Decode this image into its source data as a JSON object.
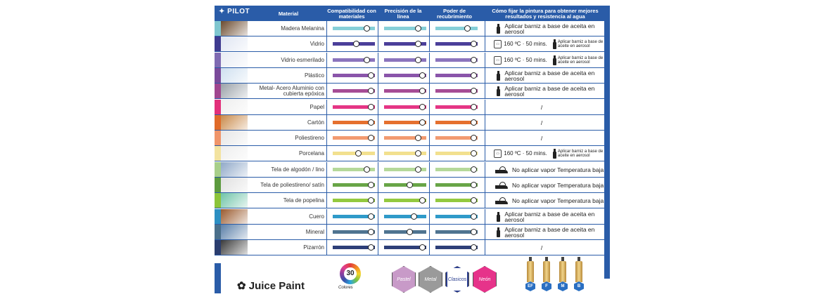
{
  "header": {
    "brand": "PILOT",
    "material": "Material",
    "compat": "Compatibilidad con materiales",
    "precision": "Precisión de la línea",
    "cover": "Poder de recubrimiento",
    "howto": "Cómo fijar la pintura para obtener mejores resultados y resistencia al agua"
  },
  "rows": [
    {
      "label": "Madera Melanina",
      "swatch": "#7fc6cf",
      "photo": "#6b4a2e",
      "bar": "#86cfd8",
      "knobs": [
        {
          "v": 0.8
        },
        {
          "v": 0.8
        },
        {
          "v": 0.75
        }
      ],
      "tip": "spray",
      "tip_text": "Aplicar barniz a base de aceita en aerosol"
    },
    {
      "label": "Vidrio",
      "swatch": "#3e3a8f",
      "photo": "#dfe5f2",
      "bar": "#4b3f9a",
      "knobs": [
        {
          "v": 0.55
        },
        {
          "v": 0.8
        },
        {
          "v": 0.9
        }
      ],
      "tip": "oven",
      "oven_text": "160 ºC · 50 mins.",
      "tip_text": "Aplicar barniz a base de aceite en aerosol"
    },
    {
      "label": "Vidrio esmerilado",
      "swatch": "#7f6ab2",
      "photo": "#e8ecf4",
      "bar": "#8b74bd",
      "knobs": [
        {
          "v": 0.8
        },
        {
          "v": 0.8
        },
        {
          "v": 0.9
        }
      ],
      "tip": "oven",
      "oven_text": "160 ºC · 50 mins.",
      "tip_text": "Aplicar barniz a base de aceite en aerosol"
    },
    {
      "label": "Plástico",
      "swatch": "#7a4a9a",
      "photo": "#cfe0f0",
      "bar": "#8a55aa",
      "knobs": [
        {
          "v": 0.9
        },
        {
          "v": 0.9
        },
        {
          "v": 0.9
        }
      ],
      "tip": "spray",
      "tip_text": "Aplicar barniz a base de aceita en aerosol"
    },
    {
      "label": "Metal- Acero Aluminio con cubierta epóxica",
      "swatch": "#a0468f",
      "photo": "#9aa1a8",
      "bar": "#a64d95",
      "knobs": [
        {
          "v": 0.9
        },
        {
          "v": 0.9
        },
        {
          "v": 0.9
        }
      ],
      "tip": "spray",
      "tip_text": "Aplicar barniz a base de aceita en aerosol"
    },
    {
      "label": "Papel",
      "swatch": "#e2307a",
      "photo": "#eeeeee",
      "bar": "#e53585",
      "knobs": [
        {
          "v": 0.9
        },
        {
          "v": 0.9
        },
        {
          "v": 0.9
        }
      ],
      "tip": "slash",
      "tip_text": "/"
    },
    {
      "label": "Cartón",
      "swatch": "#e06a28",
      "photo": "#c98a4a",
      "bar": "#e5702f",
      "knobs": [
        {
          "v": 0.9
        },
        {
          "v": 0.9
        },
        {
          "v": 0.9
        }
      ],
      "tip": "slash",
      "tip_text": "/"
    },
    {
      "label": "Poliestireno",
      "swatch": "#f0956a",
      "photo": "#e6e6e6",
      "bar": "#f29a70",
      "knobs": [
        {
          "v": 0.9
        },
        {
          "v": 0.8
        },
        {
          "v": 0.9
        }
      ],
      "tip": "slash",
      "tip_text": "/"
    },
    {
      "label": "Porcelana",
      "swatch": "#f3e3a0",
      "photo": "#eeeeee",
      "bar": "#f2e08e",
      "knobs": [
        {
          "v": 0.6
        },
        {
          "v": 0.8
        },
        {
          "v": 0.9
        }
      ],
      "tip": "oven",
      "oven_text": "160 ºC · 50 mins.",
      "tip_text": "Aplicar barniz a base de aceite en aerosol"
    },
    {
      "label": "Tela de algodón / lino",
      "swatch": "#a8cf8a",
      "photo": "#8fa8c8",
      "bar": "#b5d99a",
      "knobs": [
        {
          "v": 0.8
        },
        {
          "v": 0.8
        },
        {
          "v": 0.9
        }
      ],
      "tip": "iron",
      "tip_text": "No aplicar vapor Temperatura baja"
    },
    {
      "label": "Tela de poliestireno/ satín",
      "swatch": "#5c9a3e",
      "photo": "#e0e0e0",
      "bar": "#68a547",
      "knobs": [
        {
          "v": 0.9
        },
        {
          "v": 0.6
        },
        {
          "v": 0.9
        }
      ],
      "tip": "iron",
      "tip_text": "No aplicar vapor Temperatura baja"
    },
    {
      "label": "Tela de popelina",
      "swatch": "#8cc43a",
      "photo": "#6fc4a8",
      "bar": "#93c93f",
      "knobs": [
        {
          "v": 0.9
        },
        {
          "v": 0.9
        },
        {
          "v": 0.9
        }
      ],
      "tip": "iron",
      "tip_text": "No aplicar vapor Temperatura baja"
    },
    {
      "label": "Cuero",
      "swatch": "#2c8fc2",
      "photo": "#9a5a2e",
      "bar": "#2f9ac9",
      "knobs": [
        {
          "v": 0.9
        },
        {
          "v": 0.7
        },
        {
          "v": 0.9
        }
      ],
      "tip": "spray",
      "tip_text": "Aplicar barniz a base de aceita en aerosol"
    },
    {
      "label": "Mineral",
      "swatch": "#4a6f8a",
      "photo": "#5a7fa8",
      "bar": "#4f7490",
      "knobs": [
        {
          "v": 0.9
        },
        {
          "v": 0.6
        },
        {
          "v": 0.9
        }
      ],
      "tip": "spray",
      "tip_text": "Aplicar barniz a base de aceita en aerosol"
    },
    {
      "label": "Pizarrón",
      "swatch": "#2a3d6e",
      "photo": "#3a3a3a",
      "bar": "#2d3f78",
      "knobs": [
        {
          "v": 0.9
        },
        {
          "v": 0.9
        },
        {
          "v": 0.9
        }
      ],
      "tip": "slash",
      "tip_text": "/"
    }
  ],
  "footer": {
    "brand": "Juice Paint",
    "colors_count": "30",
    "colors_label": "Colores",
    "badges": [
      {
        "label": "Pastel",
        "color": "#c89ac8"
      },
      {
        "label": "Metal",
        "color": "#9a9a9a"
      },
      {
        "label": "Clasicos",
        "color": "#ffffff"
      },
      {
        "label": "Neón",
        "color": "#e6338a"
      }
    ],
    "nibs": [
      "EF",
      "F",
      "M",
      "B"
    ]
  }
}
